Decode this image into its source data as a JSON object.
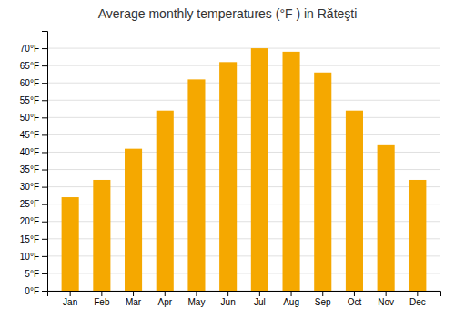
{
  "chart_data": {
    "type": "bar",
    "title": "Average monthly temperatures (°F ) in Răteşti",
    "categories": [
      "Jan",
      "Feb",
      "Mar",
      "Apr",
      "May",
      "Jun",
      "Jul",
      "Aug",
      "Sep",
      "Oct",
      "Nov",
      "Dec"
    ],
    "values": [
      27,
      32,
      41,
      52,
      61,
      66,
      70,
      69,
      63,
      52,
      42,
      32
    ],
    "color": "#F5A800",
    "ylim": [
      0,
      75
    ],
    "yticks": [
      {
        "value": 0,
        "label": "0°F"
      },
      {
        "value": 5,
        "label": "5°F"
      },
      {
        "value": 10,
        "label": "10°F"
      },
      {
        "value": 15,
        "label": "15°F"
      },
      {
        "value": 20,
        "label": "20°F"
      },
      {
        "value": 25,
        "label": "25°F"
      },
      {
        "value": 30,
        "label": "30°F"
      },
      {
        "value": 35,
        "label": "35°F"
      },
      {
        "value": 40,
        "label": "40°F"
      },
      {
        "value": 45,
        "label": "45°F"
      },
      {
        "value": 50,
        "label": "50°F"
      },
      {
        "value": 55,
        "label": "55°F"
      },
      {
        "value": 60,
        "label": "60°F"
      },
      {
        "value": 65,
        "label": "65°F"
      },
      {
        "value": 70,
        "label": "70°F"
      }
    ],
    "grid": true
  }
}
